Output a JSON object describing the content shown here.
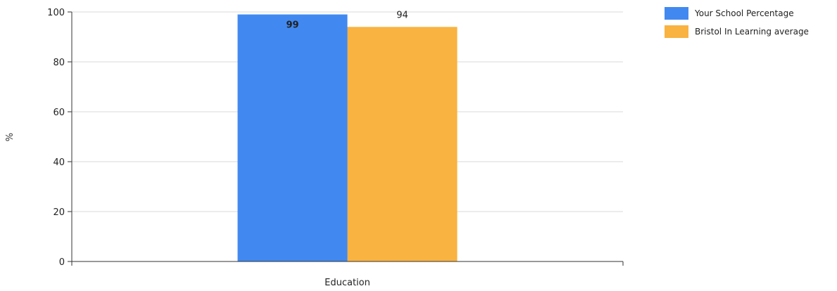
{
  "chart_data": {
    "type": "bar",
    "categories": [
      "Education"
    ],
    "series": [
      {
        "name": "Your School Percentage",
        "values": [
          99
        ],
        "color": "#4189F0"
      },
      {
        "name": "Bristol In Learning average",
        "values": [
          94
        ],
        "color": "#F9B340"
      }
    ],
    "ylabel": "%",
    "xlabel": "",
    "ylim": [
      0,
      100
    ],
    "yticks": [
      0,
      20,
      40,
      60,
      80,
      100
    ],
    "grid": true,
    "legend": "top-right"
  }
}
